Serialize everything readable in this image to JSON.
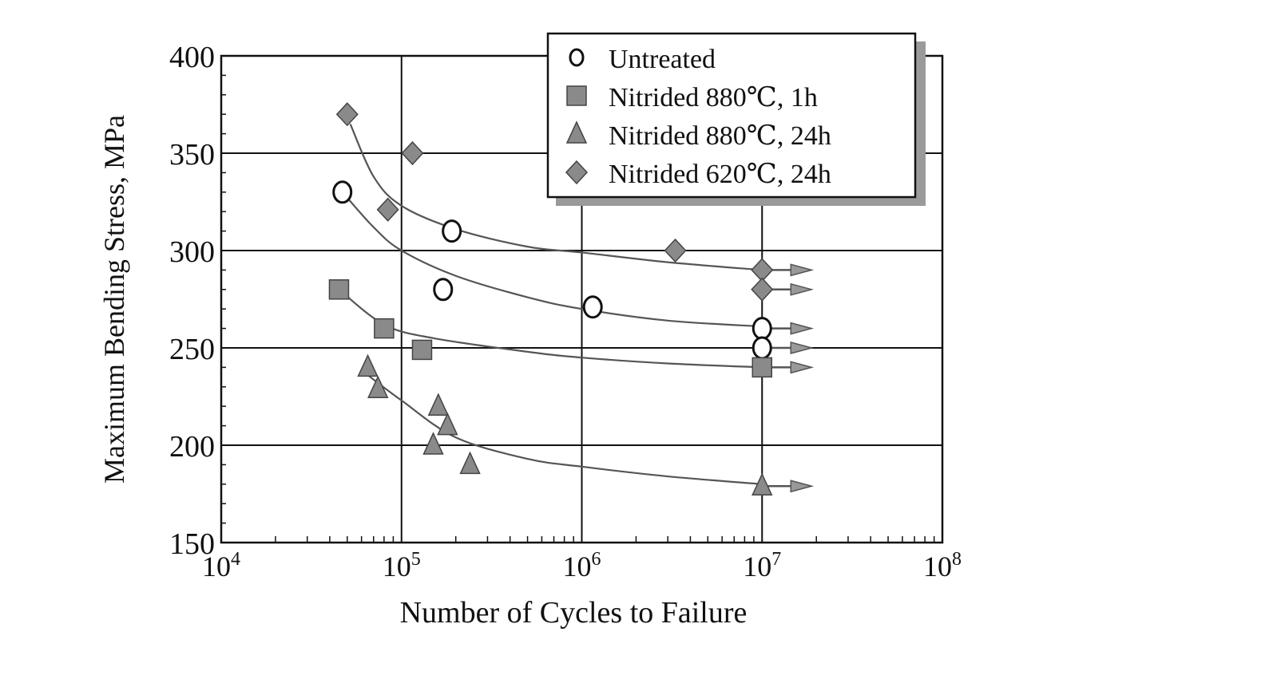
{
  "chart_data": {
    "type": "scatter",
    "title": "",
    "xlabel": "Number of Cycles to Failure",
    "ylabel": "Maximum Bending Stress, MPa",
    "xscale": "log",
    "xlim": [
      10000,
      100000000
    ],
    "ylim": [
      150,
      400
    ],
    "xticks": [
      {
        "v": 10000,
        "base": "10",
        "exp": "4"
      },
      {
        "v": 100000,
        "base": "10",
        "exp": "5"
      },
      {
        "v": 1000000,
        "base": "10",
        "exp": "6"
      },
      {
        "v": 10000000,
        "base": "10",
        "exp": "7"
      },
      {
        "v": 100000000,
        "base": "10",
        "exp": "8"
      }
    ],
    "yticks": [
      "150",
      "200",
      "250",
      "300",
      "350",
      "400"
    ],
    "grid": true,
    "legend_position": "top-right",
    "series": [
      {
        "name": "Untreated",
        "marker": "open-circle",
        "color": "#ffffff",
        "points": [
          [
            47000,
            330
          ],
          [
            190000,
            310
          ],
          [
            170000,
            280
          ],
          [
            1150000,
            271
          ],
          [
            10000000,
            260
          ],
          [
            10000000,
            250
          ]
        ],
        "runouts": [
          [
            10000000,
            260
          ],
          [
            10000000,
            250
          ]
        ],
        "curve": [
          [
            47000,
            330
          ],
          [
            70000,
            312
          ],
          [
            100000,
            300
          ],
          [
            200000,
            287
          ],
          [
            500000,
            276
          ],
          [
            1000000,
            270
          ],
          [
            3000000,
            264
          ],
          [
            10000000,
            261
          ]
        ]
      },
      {
        "name": "Nitrided 880℃, 1h",
        "marker": "square",
        "color": "#8a8a8a",
        "points": [
          [
            45000,
            280
          ],
          [
            80000,
            260
          ],
          [
            130000,
            249
          ],
          [
            10000000,
            240
          ]
        ],
        "runouts": [
          [
            10000000,
            240
          ]
        ],
        "curve": [
          [
            45000,
            280
          ],
          [
            80000,
            262
          ],
          [
            150000,
            255
          ],
          [
            500000,
            248
          ],
          [
            1000000,
            245
          ],
          [
            3000000,
            242
          ],
          [
            10000000,
            240
          ]
        ]
      },
      {
        "name": "Nitrided 880℃, 24h",
        "marker": "triangle",
        "color": "#8a8a8a",
        "points": [
          [
            65000,
            240
          ],
          [
            74000,
            229
          ],
          [
            160000,
            220
          ],
          [
            180000,
            210
          ],
          [
            150000,
            200
          ],
          [
            240000,
            190
          ],
          [
            10000000,
            179
          ]
        ],
        "runouts": [
          [
            10000000,
            179
          ]
        ],
        "curve": [
          [
            65000,
            236
          ],
          [
            100000,
            223
          ],
          [
            200000,
            204
          ],
          [
            500000,
            193
          ],
          [
            1000000,
            189
          ],
          [
            3000000,
            184
          ],
          [
            10000000,
            180
          ]
        ]
      },
      {
        "name": "Nitrided 620℃, 24h",
        "marker": "diamond",
        "color": "#8a8a8a",
        "points": [
          [
            50000,
            370
          ],
          [
            115000,
            350
          ],
          [
            84000,
            321
          ],
          [
            3300000,
            300
          ],
          [
            10000000,
            290
          ],
          [
            10000000,
            280
          ]
        ],
        "runouts": [
          [
            10000000,
            290
          ],
          [
            10000000,
            280
          ]
        ],
        "curve": [
          [
            52000,
            365
          ],
          [
            70000,
            338
          ],
          [
            100000,
            323
          ],
          [
            200000,
            311
          ],
          [
            500000,
            302
          ],
          [
            1000000,
            299
          ],
          [
            3000000,
            294
          ],
          [
            10000000,
            290
          ]
        ]
      }
    ]
  }
}
